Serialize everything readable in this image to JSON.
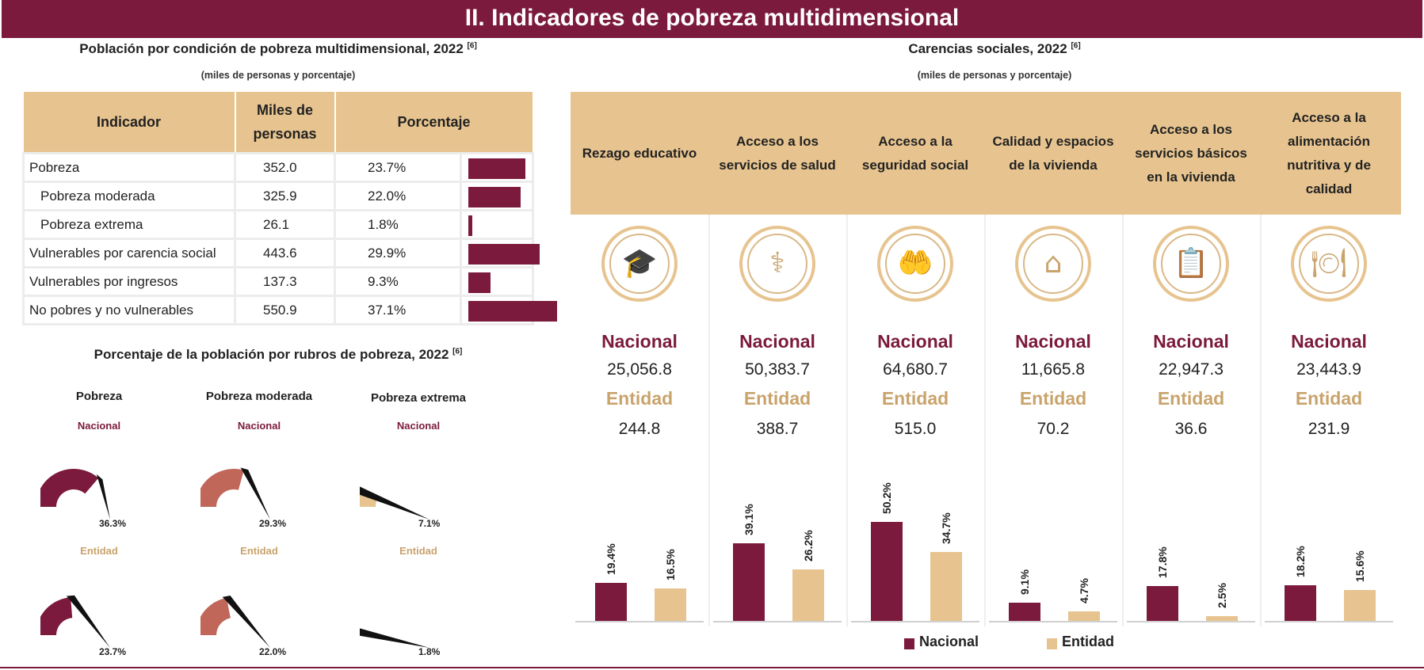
{
  "banner_title": "II. Indicadores de pobreza multidimensional",
  "colors": {
    "nacional": "#7b1a3c",
    "entidad": "#e7c48f",
    "moderada": "#c0675a",
    "header_bg": "#e7c48f"
  },
  "poverty_table": {
    "title": "Población por condición de pobreza multidimensional, 2022",
    "ref": "[6]",
    "subtitle": "(miles de personas y porcentaje)",
    "headers": [
      "Indicador",
      "Miles de personas",
      "Porcentaje"
    ],
    "rows": [
      {
        "label": "Pobreza",
        "miles": "352.0",
        "pct": "23.7%",
        "value": 23.7
      },
      {
        "label": "Pobreza moderada",
        "miles": "325.9",
        "pct": "22.0%",
        "value": 22.0
      },
      {
        "label": "Pobreza extrema",
        "miles": "26.1",
        "pct": "1.8%",
        "value": 1.8
      },
      {
        "label": "Vulnerables por carencia social",
        "miles": "443.6",
        "pct": "29.9%",
        "value": 29.9
      },
      {
        "label": "Vulnerables por ingresos",
        "miles": "137.3",
        "pct": "9.3%",
        "value": 9.3
      },
      {
        "label": "No pobres y no vulnerables",
        "miles": "550.9",
        "pct": "37.1%",
        "value": 37.1
      }
    ]
  },
  "gauges": {
    "title": "Porcentaje de la población por rubros de pobreza, 2022",
    "ref": "[6]",
    "nacional_label": "Nacional",
    "entidad_label": "Entidad",
    "items": [
      {
        "name": "Pobreza",
        "nacional": 36.3,
        "nacional_label": "36.3%",
        "entidad": 23.7,
        "entidad_label": "23.7%"
      },
      {
        "name": "Pobreza moderada",
        "nacional": 29.3,
        "nacional_label": "29.3%",
        "entidad": 22.0,
        "entidad_label": "22.0%"
      },
      {
        "name": "Pobreza extrema",
        "nacional": 7.1,
        "nacional_label": "7.1%",
        "entidad": 1.8,
        "entidad_label": "1.8%"
      }
    ]
  },
  "carencias": {
    "title": "Carencias sociales, 2022",
    "ref": "[6]",
    "subtitle": "(miles de personas y porcentaje)",
    "nacional_label": "Nacional",
    "entidad_label": "Entidad",
    "columns": [
      {
        "label": "Rezago educativo",
        "icon": "graduation-books-icon",
        "nacional_miles": "25,056.8",
        "entidad_miles": "244.8"
      },
      {
        "label": "Acceso a los servicios de salud",
        "icon": "health-services-icon",
        "nacional_miles": "50,383.7",
        "entidad_miles": "388.7"
      },
      {
        "label": "Acceso a la seguridad social",
        "icon": "social-security-hands-icon",
        "nacional_miles": "64,680.7",
        "entidad_miles": "515.0"
      },
      {
        "label": "Calidad y espacios de la vivienda",
        "icon": "house-family-icon",
        "nacional_miles": "11,665.8",
        "entidad_miles": "70.2"
      },
      {
        "label": "Acceso a los servicios básicos en la vivienda",
        "icon": "basic-services-clipboard-icon",
        "nacional_miles": "22,947.3",
        "entidad_miles": "36.6"
      },
      {
        "label": "Acceso a la alimentación nutritiva y de calidad",
        "icon": "food-plate-icon",
        "nacional_miles": "23,443.9",
        "entidad_miles": "231.9"
      }
    ],
    "legend": [
      "Nacional",
      "Entidad"
    ]
  },
  "chart_data": [
    {
      "type": "table",
      "title": "Población por condición de pobreza multidimensional, 2022",
      "categories": [
        "Pobreza",
        "Pobreza moderada",
        "Pobreza extrema",
        "Vulnerables por carencia social",
        "Vulnerables por ingresos",
        "No pobres y no vulnerables"
      ],
      "miles_de_personas": [
        352.0,
        325.9,
        26.1,
        443.6,
        137.3,
        550.9
      ],
      "porcentaje": [
        23.7,
        22.0,
        1.8,
        29.9,
        9.3,
        37.1
      ]
    },
    {
      "type": "pie",
      "title": "Porcentaje de la población por rubros de pobreza, 2022",
      "categories": [
        "Pobreza",
        "Pobreza moderada",
        "Pobreza extrema"
      ],
      "series": [
        {
          "name": "Nacional",
          "values": [
            36.3,
            29.3,
            7.1
          ]
        },
        {
          "name": "Entidad",
          "values": [
            23.7,
            22.0,
            1.8
          ]
        }
      ]
    },
    {
      "type": "bar",
      "title": "Carencias sociales, 2022",
      "categories": [
        "Rezago educativo",
        "Acceso a los servicios de salud",
        "Acceso a la seguridad social",
        "Calidad y espacios de la vivienda",
        "Acceso a los servicios básicos en la vivienda",
        "Acceso a la alimentación nutritiva y de calidad"
      ],
      "series": [
        {
          "name": "Nacional",
          "values": [
            19.4,
            39.1,
            50.2,
            9.1,
            17.8,
            18.2
          ],
          "labels": [
            "19.4%",
            "39.1%",
            "50.2%",
            "9.1%",
            "17.8%",
            "18.2%"
          ]
        },
        {
          "name": "Entidad",
          "values": [
            16.5,
            26.2,
            34.7,
            4.7,
            2.5,
            15.6
          ],
          "labels": [
            "16.5%",
            "26.2%",
            "34.7%",
            "4.7%",
            "2.5%",
            "15.6%"
          ]
        }
      ],
      "legend_position": "bottom"
    }
  ]
}
